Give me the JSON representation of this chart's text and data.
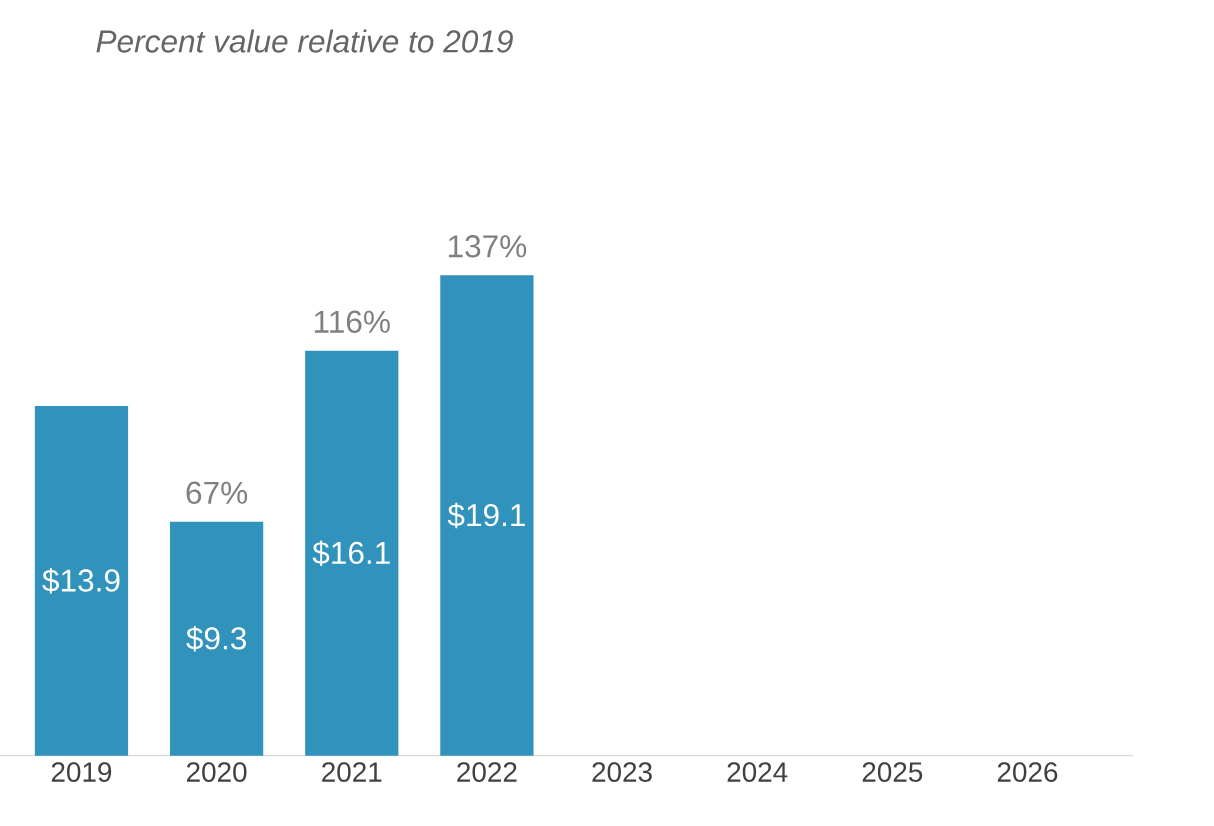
{
  "chart_data": {
    "type": "bar",
    "title": "Percent value relative to 2019",
    "categories": [
      "2019",
      "2020",
      "2021",
      "2022",
      "2023",
      "2024",
      "2025",
      "2026"
    ],
    "values": [
      13.9,
      9.3,
      16.1,
      19.1,
      null,
      null,
      null,
      null
    ],
    "value_labels": [
      "$13.9",
      "$9.3",
      "$16.1",
      "$19.1",
      null,
      null,
      null,
      null
    ],
    "color": "#3192bb",
    "annotations": [
      {
        "text": "67%",
        "x": "2020",
        "y": 9.3
      },
      {
        "text": "116%",
        "x": "2021",
        "y": 16.1
      },
      {
        "text": "137%",
        "x": "2022",
        "y": 19.1
      }
    ]
  }
}
